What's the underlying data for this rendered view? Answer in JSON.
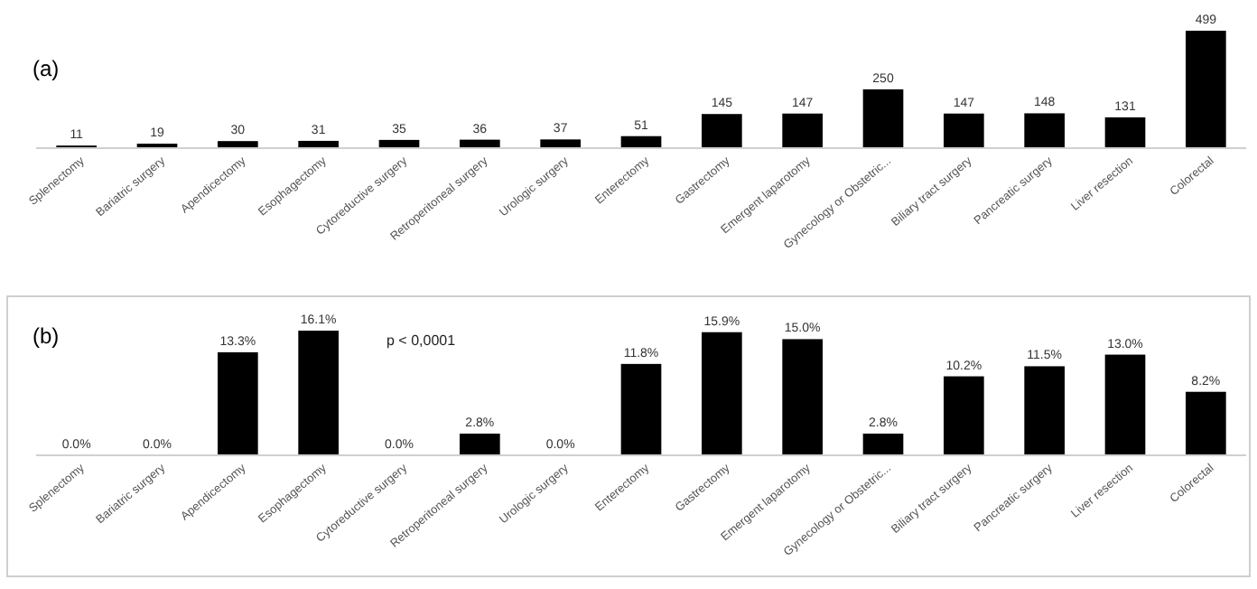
{
  "chart_data": [
    {
      "type": "bar",
      "title": "(a)",
      "categories": [
        "Splenectomy",
        "Bariatric surgery",
        "Apendicectomy",
        "Esophagectomy",
        "Cytoreductive surgery",
        "Retroperitoneal surgery",
        "Urologic surgery",
        "Enterectomy",
        "Gastrectomy",
        "Emergent laparotomy",
        "Gynecology or Obstetric...",
        "Biliary tract surgery",
        "Pancreatic surgery",
        "Liver resection",
        "Colorectal"
      ],
      "values": [
        11,
        19,
        30,
        31,
        35,
        36,
        37,
        51,
        145,
        147,
        250,
        147,
        148,
        131,
        499
      ],
      "color": "#000000",
      "data_labels": true
    },
    {
      "type": "bar",
      "title": "(b)",
      "categories": [
        "Splenectomy",
        "Bariatric surgery",
        "Apendicectomy",
        "Esophagectomy",
        "Cytoreductive surgery",
        "Retroperitoneal surgery",
        "Urologic surgery",
        "Enterectomy",
        "Gastrectomy",
        "Emergent laparotomy",
        "Gynecology or Obstetric...",
        "Biliary tract surgery",
        "Pancreatic surgery",
        "Liver resection",
        "Colorectal"
      ],
      "values": [
        0.0,
        0.0,
        13.3,
        16.1,
        0.0,
        2.8,
        0.0,
        11.8,
        15.9,
        15.0,
        2.8,
        10.2,
        11.5,
        13.0,
        8.2
      ],
      "value_labels": [
        "0.0%",
        "0.0%",
        "13.3%",
        "16.1%",
        "0.0%",
        "2.8%",
        "0.0%",
        "11.8%",
        "15.9%",
        "15.0%",
        "2.8%",
        "10.2%",
        "11.5%",
        "13.0%",
        "8.2%"
      ],
      "color": "#000000",
      "annotations": [
        "p < 0,0001"
      ]
    }
  ]
}
